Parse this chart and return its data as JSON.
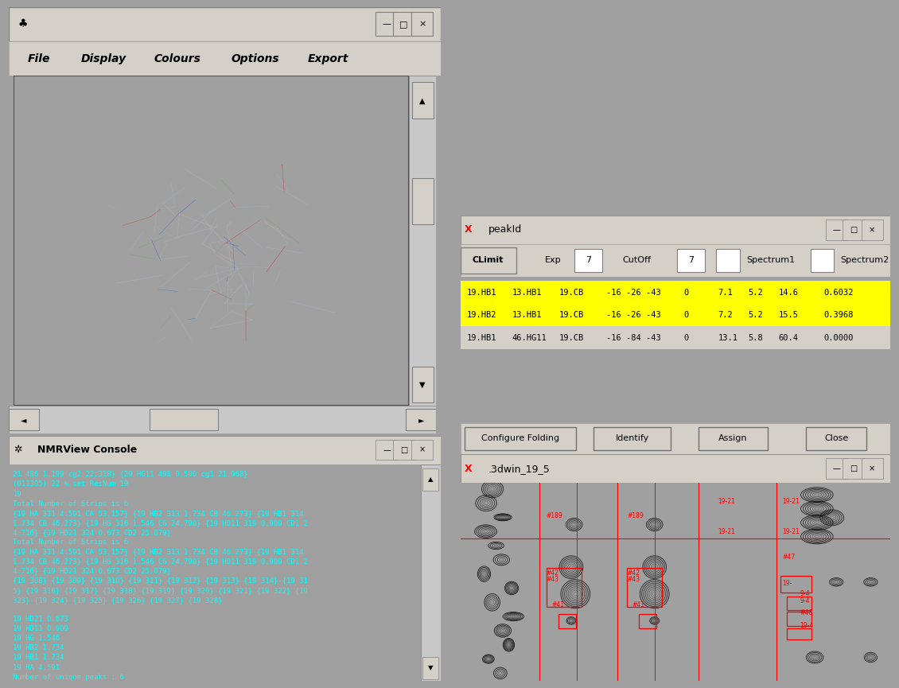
{
  "left_panel_bg": "#c0c0c0",
  "left_title_bar_color": "#d4d0c8",
  "left_menu_items": [
    "File",
    "Display",
    "Colours",
    "Options",
    "Export"
  ],
  "molecule_view_bg": "#ffffff",
  "console_bg": "#000080",
  "console_text_color": "#00ffff",
  "console_title": "NMRView Console",
  "console_lines": [
    "21 486 1.199 cg2 22.318} {29 HG11 491 0.500 cg1 21.968}",
    "(011305) 22 % set ResNum 19",
    "19",
    "Total Number of Strips is 6",
    "{19 HA 311 4.591 CA 53.157} {19 HB2 313 1.734 CB 46.273} {19 HB1 314",
    "1.734 CB 46.273} {19 HG 316 1.546 CG 24.790} {19 HD11 319 0.909 CD1 2",
    "4.716} {19 HD21 324 0.673 CD2 25.079}",
    "Total Number of Strips is 6",
    "{19 HA 311 4.591 CA 53.157} {19 HB2 313 1.734 CB 46.273} {19 HB1 314",
    "1.734 CB 46.273} {19 HG 316 1.546 CG 24.790} {19 HD11 319 0.909 CD1 2",
    "4.716} {19 HD21 324 0.673 CD2 25.079}",
    "{19 308} {19 309} {19 310} {19 311} {19 312} {19 313} {19 314} {19 31",
    "5} {19 316} {19 317} {19 318} {19 319} {19 320} {19 321} {19 322} {19",
    "323} {19 324} {19 325} {19 326} {19 327} {19 328}",
    "",
    "19 HD21 0.673",
    "19 HD11 0.909",
    "19 HG 1.546",
    "19 HB2 1.734",
    "19 HB1 1.734",
    "19 HA 4.591",
    "Number of unique peaks : 6"
  ],
  "peakid_title": "peakId",
  "peakid_rows": [
    {
      "cols": [
        "19.HB1",
        "13.HB1",
        "19.CB",
        "-16 -26 -43",
        "0",
        "7.1",
        "5.2",
        "14.6",
        "0.6032"
      ],
      "bg": "#ffff00"
    },
    {
      "cols": [
        "19.HB2",
        "13.HB1",
        "19.CB",
        "-16 -26 -43",
        "0",
        "7.2",
        "5.2",
        "15.5",
        "0.3968"
      ],
      "bg": "#ffff00"
    },
    {
      "cols": [
        "19.HB1",
        "46.HG11",
        "19.CB",
        "-16 -84 -43",
        "0",
        "13.1",
        "5.8",
        "60.4",
        "0.0000"
      ],
      "bg": "#d4d0c8"
    }
  ],
  "buttons": [
    "Configure Folding",
    "Identify",
    "Assign",
    "Close"
  ],
  "strip_title": ".3dwin_19_5"
}
